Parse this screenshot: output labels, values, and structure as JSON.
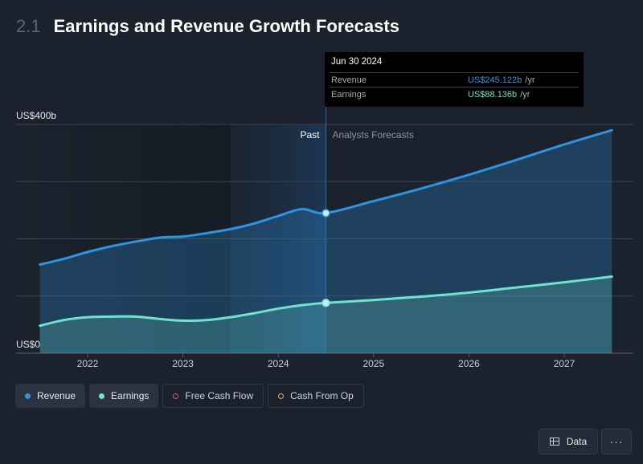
{
  "header": {
    "section_number": "2.1",
    "title": "Earnings and Revenue Growth Forecasts"
  },
  "tooltip": {
    "date": "Jun 30 2024",
    "rows": [
      {
        "label": "Revenue",
        "value": "US$245.122b",
        "unit": "/yr"
      },
      {
        "label": "Earnings",
        "value": "US$88.136b",
        "unit": "/yr"
      }
    ]
  },
  "legend": {
    "items": [
      {
        "label": "Revenue",
        "color": "#2f94e0",
        "active": true
      },
      {
        "label": "Earnings",
        "color": "#6fe3cd",
        "active": true
      },
      {
        "label": "Free Cash Flow",
        "color": "#e0507a",
        "active": false
      },
      {
        "label": "Cash From Op",
        "color": "#f0a14a",
        "active": false
      }
    ]
  },
  "buttons": {
    "data_label": "Data",
    "more_label": "···"
  },
  "chart_data": {
    "type": "area",
    "ylabel_top": "US$400b",
    "ylabel_bottom": "US$0",
    "ylim": [
      0,
      400
    ],
    "xlim": [
      2021.5,
      2027.6
    ],
    "x_ticks": [
      "2022",
      "2023",
      "2024",
      "2025",
      "2026",
      "2027"
    ],
    "past_label": "Past",
    "forecast_label": "Analysts Forecasts",
    "divider_x": 2024.5,
    "highlight_start": 2023.5,
    "grid": true,
    "series": [
      {
        "name": "Revenue",
        "color": "#2f94e0",
        "x": [
          2021.5,
          2021.75,
          2022.0,
          2022.25,
          2022.5,
          2022.75,
          2023.0,
          2023.25,
          2023.5,
          2023.75,
          2024.0,
          2024.25,
          2024.5,
          2025.0,
          2025.5,
          2026.0,
          2026.5,
          2027.0,
          2027.5
        ],
        "y": [
          155,
          165,
          177,
          187,
          195,
          202,
          204,
          210,
          217,
          227,
          240,
          252,
          245,
          266,
          288,
          312,
          338,
          365,
          390
        ]
      },
      {
        "name": "Earnings",
        "color": "#6fe3cd",
        "x": [
          2021.5,
          2021.75,
          2022.0,
          2022.25,
          2022.5,
          2022.75,
          2023.0,
          2023.25,
          2023.5,
          2023.75,
          2024.0,
          2024.25,
          2024.5,
          2025.0,
          2025.5,
          2026.0,
          2026.5,
          2027.0,
          2027.5
        ],
        "y": [
          48,
          58,
          63,
          64,
          64,
          60,
          57,
          58,
          63,
          70,
          78,
          84,
          88,
          93,
          99,
          106,
          115,
          124,
          134
        ]
      }
    ]
  }
}
